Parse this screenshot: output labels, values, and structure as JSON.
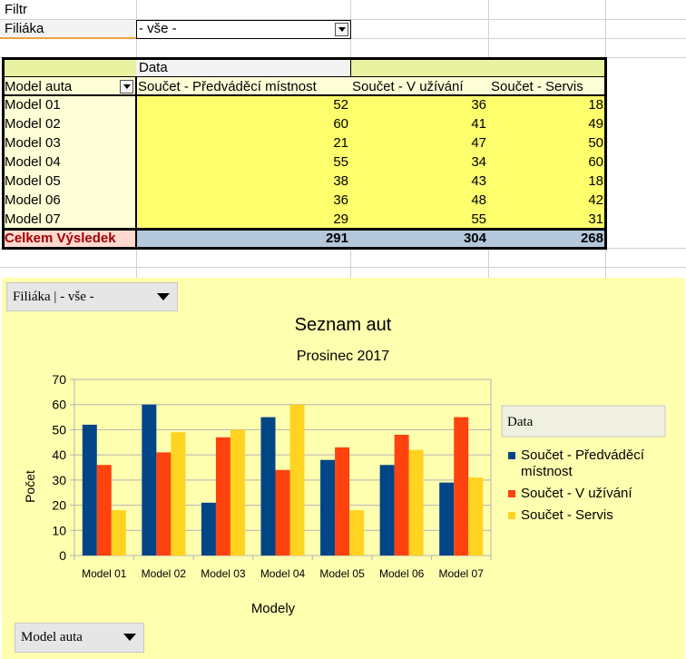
{
  "filter": {
    "label": "Filtr",
    "field_label": "Filiáka",
    "field_value": "- vše -"
  },
  "pivot": {
    "data_header": "Data",
    "row_field": "Model auta",
    "columns": [
      "Součet - Předváděcí místnost",
      "Součet - V užívání",
      "Součet - Servis"
    ],
    "rows": [
      {
        "label": "Model 01",
        "values": [
          52,
          36,
          18
        ]
      },
      {
        "label": "Model 02",
        "values": [
          60,
          41,
          49
        ]
      },
      {
        "label": "Model 03",
        "values": [
          21,
          47,
          50
        ]
      },
      {
        "label": "Model 04",
        "values": [
          55,
          34,
          60
        ]
      },
      {
        "label": "Model 05",
        "values": [
          38,
          43,
          18
        ]
      },
      {
        "label": "Model 06",
        "values": [
          36,
          48,
          42
        ]
      },
      {
        "label": "Model 07",
        "values": [
          29,
          55,
          31
        ]
      }
    ],
    "total_label": "Celkem Výsledek",
    "totals": [
      291,
      304,
      268
    ]
  },
  "chart_buttons": {
    "filter": "Filiáka | - vše -",
    "rows": "Model auta"
  },
  "chart_data": {
    "type": "bar",
    "title": "Seznam aut",
    "subtitle": "Prosinec 2017",
    "xlabel": "Modely",
    "ylabel": "Počet",
    "ylim": [
      0,
      70
    ],
    "yticks": [
      0,
      10,
      20,
      30,
      40,
      50,
      60,
      70
    ],
    "grid": true,
    "legend_title": "Data",
    "legend_position": "right",
    "categories": [
      "Model 01",
      "Model 02",
      "Model 03",
      "Model 04",
      "Model 05",
      "Model 06",
      "Model 07"
    ],
    "series": [
      {
        "name": "Součet - Předváděcí místnost",
        "color": "#004586",
        "values": [
          52,
          60,
          21,
          55,
          38,
          36,
          29
        ]
      },
      {
        "name": "Součet - V užívání",
        "color": "#ff420e",
        "values": [
          36,
          41,
          47,
          34,
          43,
          48,
          55
        ]
      },
      {
        "name": "Součet - Servis",
        "color": "#ffd320",
        "values": [
          18,
          49,
          50,
          60,
          18,
          42,
          31
        ]
      }
    ]
  },
  "colors": {
    "pivot_header_bg": "#e8f2a1",
    "pivot_row_bg": "#ffffd7",
    "pivot_data_bg": "#ffff6d",
    "pivot_total_label_bg": "#ffd8ce",
    "pivot_total_bg": "#b4c7dc",
    "pivot_total_label_color": "#a00000",
    "chart_bg": "#ffffb0"
  }
}
